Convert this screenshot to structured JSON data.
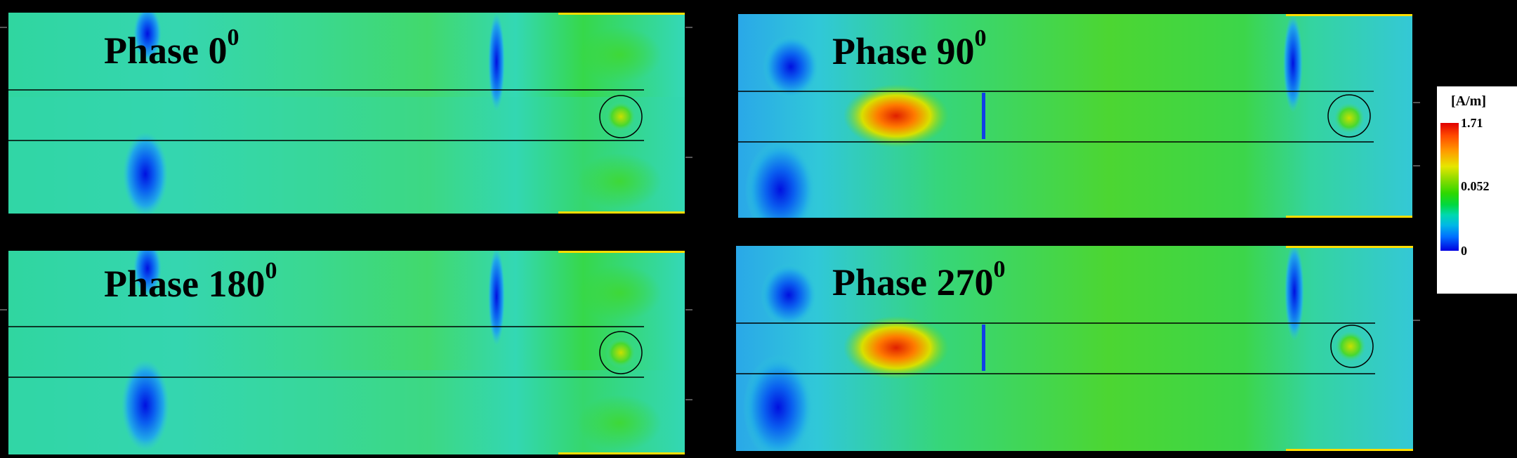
{
  "panels": [
    {
      "label": "Phase 0",
      "sup": "0"
    },
    {
      "label": "Phase 90",
      "sup": "0"
    },
    {
      "label": "Phase 180",
      "sup": "0"
    },
    {
      "label": "Phase 270",
      "sup": "0"
    }
  ],
  "colorbar": {
    "unit": "[A/m]",
    "max": "1.71",
    "mid": "0.052",
    "min": "0"
  },
  "colors": {
    "background": "#000000",
    "field_base": "#2fd84a",
    "field_low": "#2fd0c8",
    "field_min": "#0b2ef0",
    "field_high": "#ff4000",
    "conductor_strip": "#ffdd00"
  }
}
